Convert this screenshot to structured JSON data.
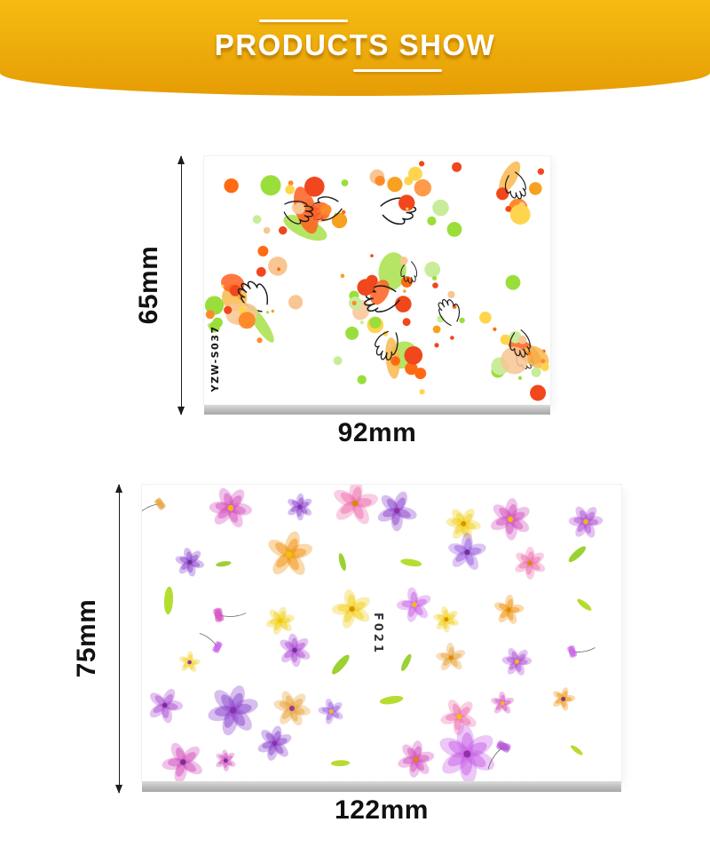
{
  "banner": {
    "title": "PRODUCTS SHOW",
    "bg_top": "#f5bb10",
    "bg_bottom": "#e69d05",
    "text_color": "#ffffff"
  },
  "products": [
    {
      "sku": "YZW-S037",
      "height_label": "65mm",
      "width_label": "92mm",
      "palette": {
        "dots": [
          "#ff6a13",
          "#f1471d",
          "#9ade3b",
          "#c9ec9b",
          "#f8c693",
          "#f8a01f",
          "#ff8a2a",
          "#ffd54d",
          "#f1471d",
          "#9ade3b"
        ],
        "blobs": [
          "#f8c693",
          "#ff8a2a",
          "#a8e04a",
          "#ff5f1f",
          "#f9b84e"
        ],
        "outline": "#1b1b1b"
      }
    },
    {
      "sku": "F021",
      "height_label": "75mm",
      "width_label": "122mm",
      "palette": {
        "petals": [
          "#b04fd6",
          "#8d46cf",
          "#e03a9e",
          "#ee6fae",
          "#f0930f",
          "#f2cf1b",
          "#e8a43c",
          "#d44fc0",
          "#9a5ce0",
          "#c85fe8"
        ],
        "centers": [
          "#f2c500",
          "#6b2e8f",
          "#d88a00",
          "#8a2f9e"
        ],
        "leaves": [
          "#a8d70c",
          "#8bc90f"
        ],
        "stem": "#666666"
      }
    }
  ]
}
